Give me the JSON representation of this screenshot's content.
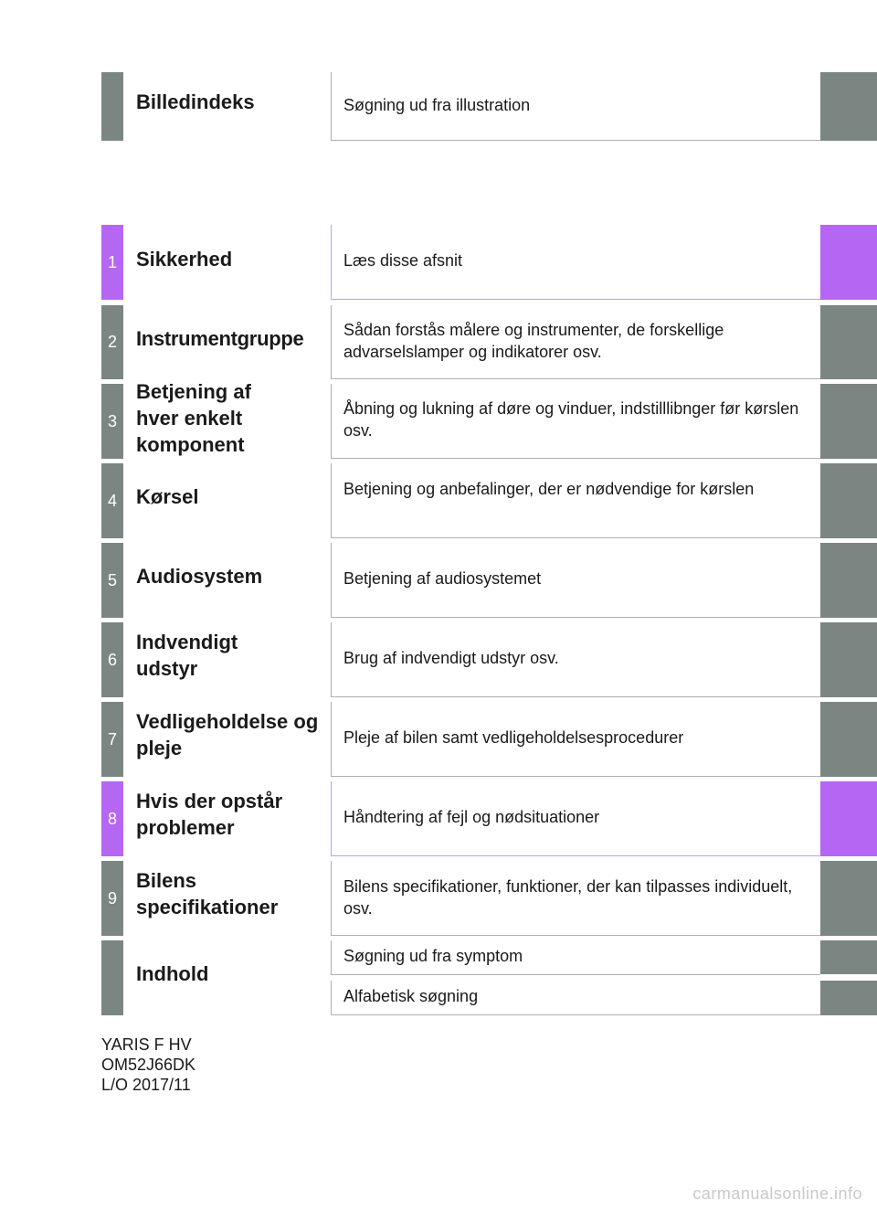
{
  "top_entry": {
    "title": "Billedindeks",
    "description": "Søgning ud fra illustration"
  },
  "chapters": [
    {
      "number": "1",
      "title": "Sikkerhed",
      "description": "Læs disse afsnit",
      "highlight": true
    },
    {
      "number": "2",
      "title": "Instrumentgruppe",
      "description": "Sådan forstås målere og instrumenter, de forskellige advarselslamper og indikatorer osv.",
      "highlight": false
    },
    {
      "number": "3",
      "title": "Betjening af hver enkelt komponent",
      "description": "Åbning og lukning af døre og vinduer, indstilllibnger før kørslen osv.",
      "highlight": false
    },
    {
      "number": "4",
      "title": "Kørsel",
      "description": "Betjening og anbefalinger, der er nødvendige for kørslen",
      "highlight": false
    },
    {
      "number": "5",
      "title": "Audiosystem",
      "description": "Betjening af audiosystemet",
      "highlight": false
    },
    {
      "number": "6",
      "title": "Indvendigt udstyr",
      "description": "Brug af indvendigt udstyr osv.",
      "highlight": false
    },
    {
      "number": "7",
      "title": "Vedligeholdelse og pleje",
      "description": "Pleje af bilen samt vedligeholdelsesprocedurer",
      "highlight": false
    },
    {
      "number": "8",
      "title": "Hvis der opstår problemer",
      "description": "Håndtering af fejl og nødsituationer",
      "highlight": true
    },
    {
      "number": "9",
      "title": "Bilens specifikationer",
      "description": "Bilens specifikationer, funktioner, der kan tilpasses individuelt, osv.",
      "highlight": false
    }
  ],
  "index_entry": {
    "title": "Indhold",
    "sub1": "Søgning ud fra symptom",
    "sub2": "Alfabetisk søgning"
  },
  "footer": {
    "line1": "YARIS F HV",
    "line2": "OM52J66DK",
    "line3": "L/O 2017/11"
  },
  "watermark": "carmanualsonline.info",
  "colors": {
    "tab_gray": "#7b8682",
    "tab_highlight": "#b566f2"
  }
}
